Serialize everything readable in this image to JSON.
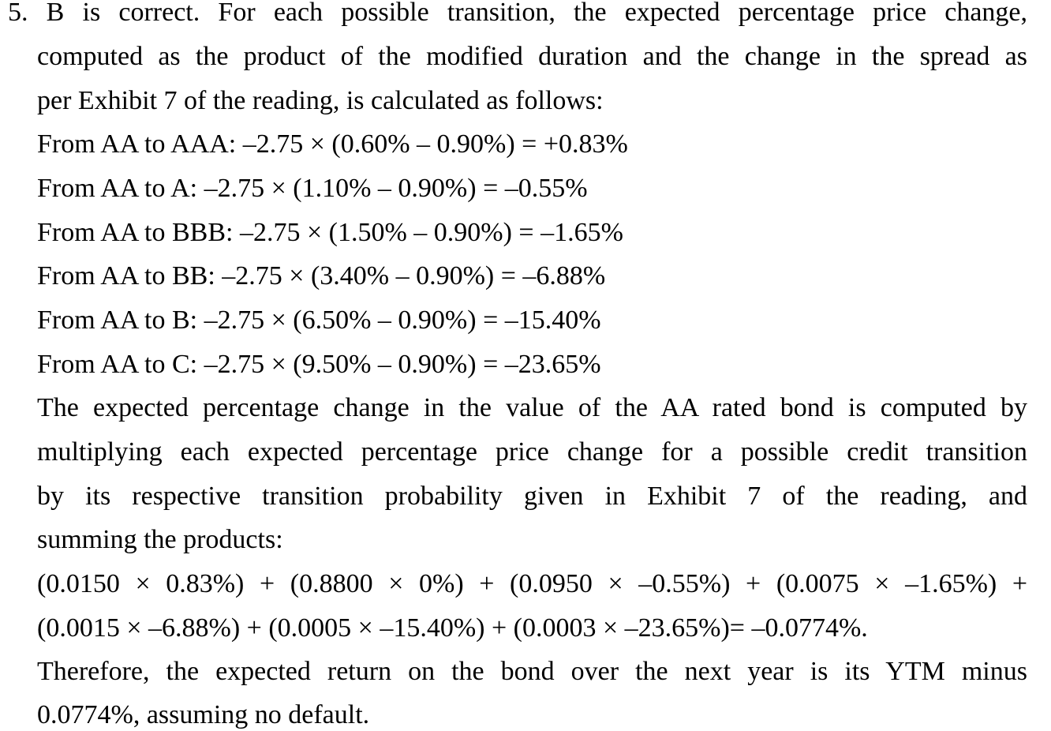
{
  "answer": {
    "intro_lines": [
      "5. B is correct. For each possible transition, the expected percentage price change,",
      "computed as the product of the modified duration and the change in the spread as",
      "per Exhibit 7 of the reading, is calculated as follows:"
    ],
    "transitions": [
      "From AA to AAA: –2.75 × (0.60% – 0.90%) = +0.83%",
      "From AA to A: –2.75 × (1.10% – 0.90%) = –0.55%",
      "From AA to BBB: –2.75 × (1.50% – 0.90%) = –1.65%",
      "From AA to BB: –2.75 × (3.40% – 0.90%) = –6.88%",
      "From AA to B: –2.75 × (6.50% – 0.90%) = –15.40%",
      "From AA to C: –2.75 × (9.50% – 0.90%) = –23.65%"
    ],
    "explanation_lines": [
      "The expected percentage change in the value of the AA rated bond is computed by",
      "multiplying each expected percentage price change for a possible credit transition",
      "by its respective transition probability given in Exhibit 7 of the reading, and",
      "summing the products:"
    ],
    "formula_lines": [
      "(0.0150 × 0.83%) + (0.8800 × 0%) + (0.0950 × –0.55%) + (0.0075 × –1.65%) +",
      "(0.0015 × –6.88%) + (0.0005 × –15.40%) + (0.0003 × –23.65%)= –0.0774%."
    ],
    "conclusion_lines": [
      "Therefore, the expected return on the bond over the next year is its YTM minus",
      "0.0774%, assuming no default."
    ]
  }
}
